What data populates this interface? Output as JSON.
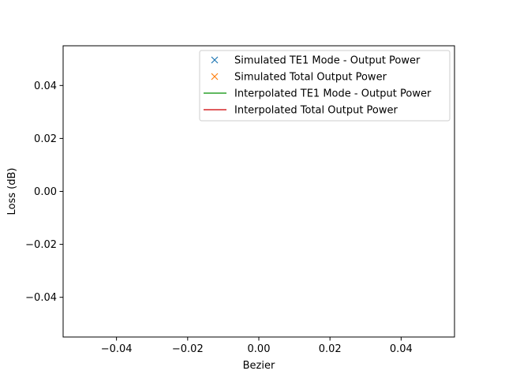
{
  "chart_data": {
    "type": "line",
    "title": "",
    "xlabel": "Bezier",
    "ylabel": "Loss (dB)",
    "xlim": [
      -0.055,
      0.055
    ],
    "ylim": [
      -0.055,
      0.055
    ],
    "x_ticks": [
      -0.04,
      -0.02,
      0.0,
      0.02,
      0.04
    ],
    "x_tick_labels": [
      "−0.04",
      "−0.02",
      "0.00",
      "0.02",
      "0.04"
    ],
    "y_ticks": [
      -0.04,
      -0.02,
      0.0,
      0.02,
      0.04
    ],
    "y_tick_labels": [
      "−0.04",
      "−0.02",
      "0.00",
      "0.02",
      "0.04"
    ],
    "grid": false,
    "legend_position": "top-right",
    "series": [
      {
        "name": "Simulated TE1 Mode - Output Power",
        "marker": "x",
        "line": false,
        "color": "#1f77b4",
        "x": [],
        "y": []
      },
      {
        "name": "Simulated Total Output Power",
        "marker": "x",
        "line": false,
        "color": "#ff7f0e",
        "x": [],
        "y": []
      },
      {
        "name": "Interpolated TE1 Mode - Output Power",
        "marker": "none",
        "line": true,
        "color": "#2ca02c",
        "x": [],
        "y": []
      },
      {
        "name": "Interpolated Total Output Power",
        "marker": "none",
        "line": true,
        "color": "#d62728",
        "x": [],
        "y": []
      }
    ]
  }
}
